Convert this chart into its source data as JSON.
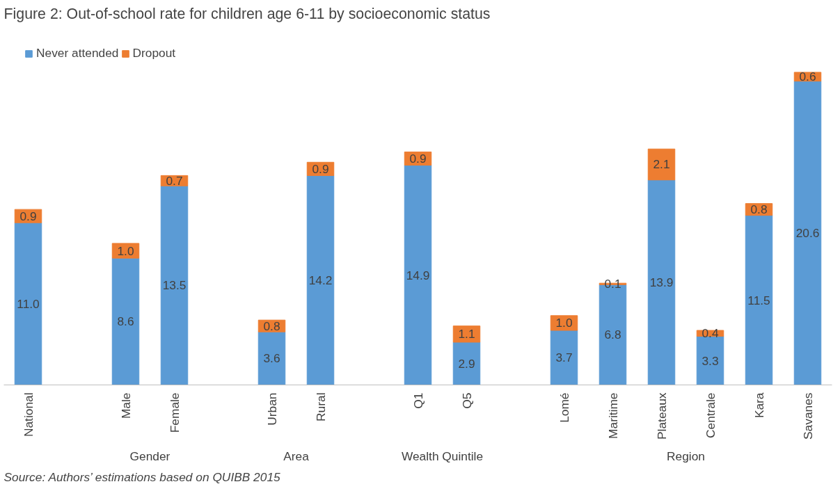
{
  "chart_data": {
    "type": "bar",
    "stacked": true,
    "title": "Figure 2:  Out-of-school rate for children age 6-11 by socioeconomic status",
    "categories": [
      "National",
      null,
      "Male",
      "Female",
      null,
      "Urban",
      "Rural",
      null,
      "Q1",
      "Q5",
      null,
      "Lomé",
      "Maritime",
      "Plateaux",
      "Centrale",
      "Kara",
      "Savanes"
    ],
    "series": [
      {
        "name": "Never attended",
        "color": "#5b9bd5",
        "values": [
          11.0,
          null,
          8.6,
          13.5,
          null,
          3.6,
          14.2,
          null,
          14.9,
          2.9,
          null,
          3.7,
          6.8,
          13.9,
          3.3,
          11.5,
          20.6
        ],
        "value_labels": [
          "11.0",
          null,
          "8.6",
          "13.5",
          null,
          "3.6",
          "14.2",
          null,
          "14.9",
          "2.9",
          null,
          "3.7",
          "6.8",
          "13.9",
          "3.3",
          "11.5",
          "20.6"
        ]
      },
      {
        "name": "Dropout",
        "color": "#ed7d31",
        "values": [
          0.9,
          null,
          1.0,
          0.7,
          null,
          0.8,
          0.9,
          null,
          0.9,
          1.1,
          null,
          1.0,
          0.1,
          2.1,
          0.4,
          0.8,
          0.6
        ],
        "value_labels": [
          "0.9",
          null,
          "1.0",
          "0.7",
          null,
          "0.8",
          "0.9",
          null,
          "0.9",
          "1.1",
          null,
          "1.0",
          "0.1",
          "2.1",
          "0.4",
          "0.8",
          "0.6"
        ]
      }
    ],
    "legend": "top left",
    "grid": false,
    "tick_labels": "x",
    "annotations": [
      "Gender",
      "Area",
      "Wealth Quintile",
      "Region",
      "Source: Authors’ estimations based on  QUIBB 2015"
    ]
  }
}
